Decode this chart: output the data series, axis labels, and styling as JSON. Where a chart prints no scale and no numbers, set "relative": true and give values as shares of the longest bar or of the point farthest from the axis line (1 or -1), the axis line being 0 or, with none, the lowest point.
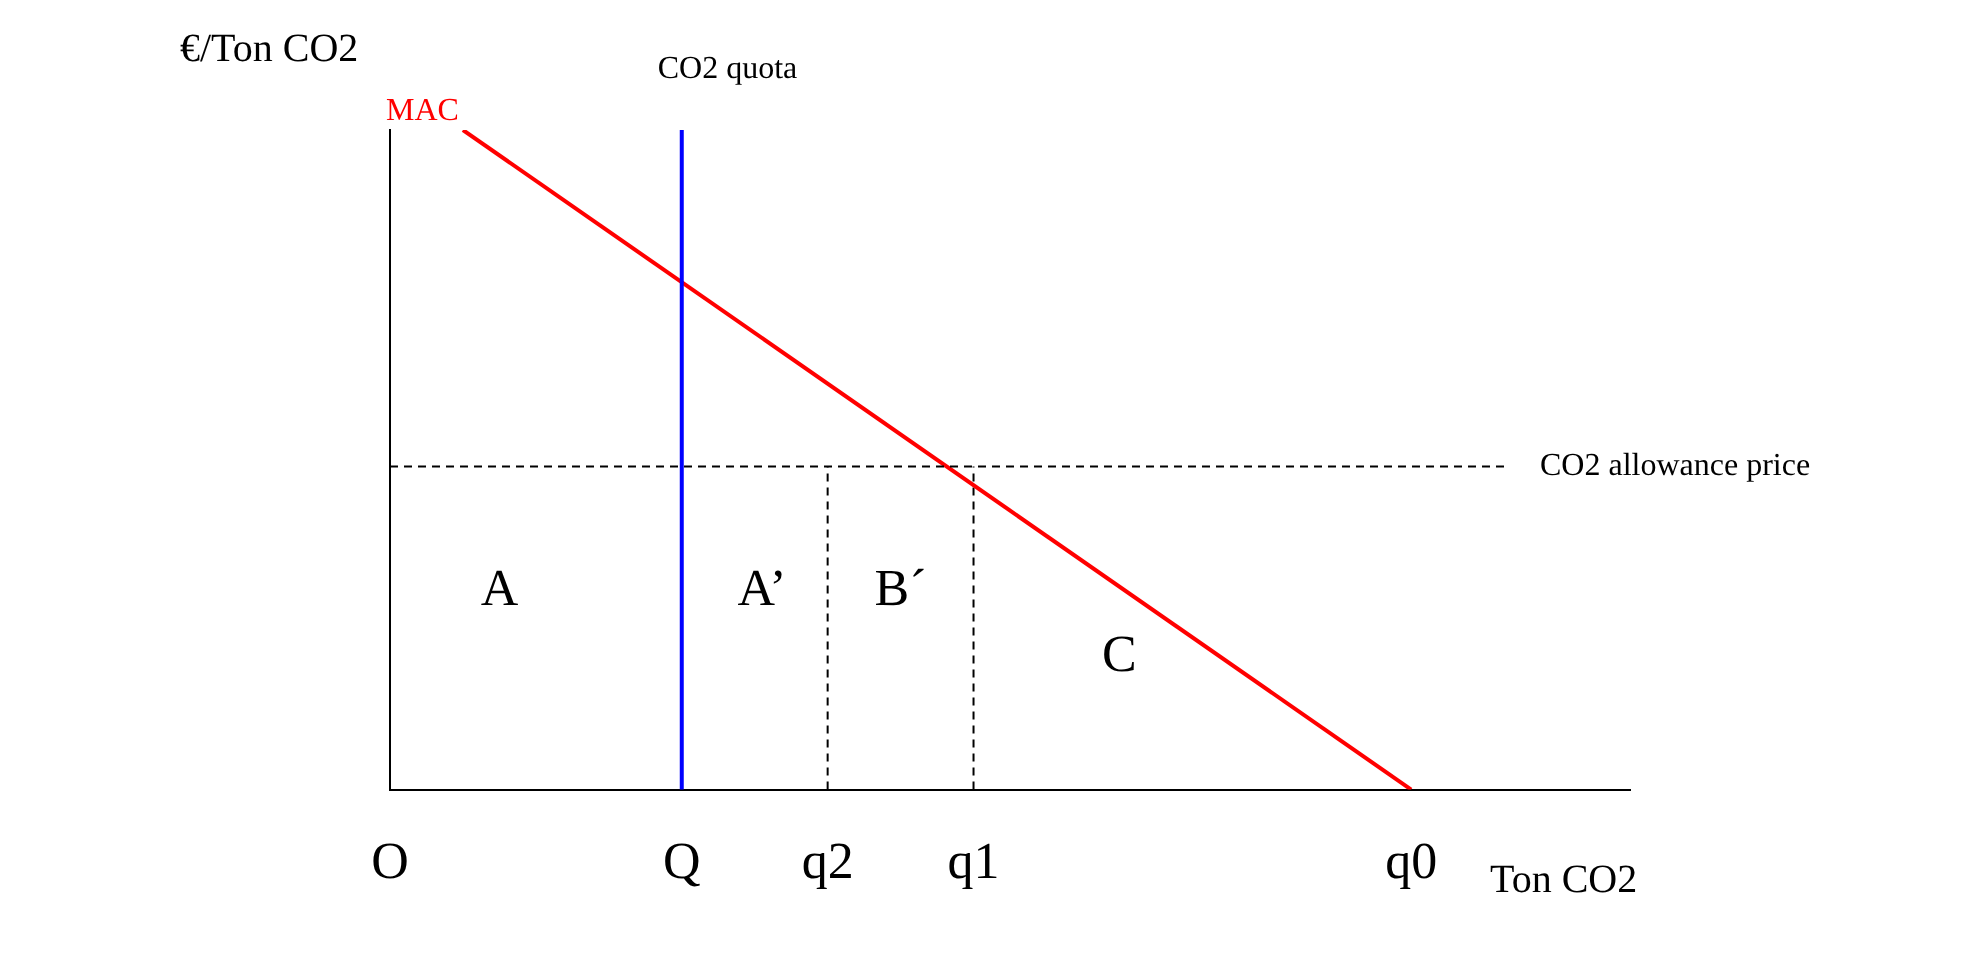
{
  "chart_data": {
    "type": "line",
    "relative": true,
    "xlabel": "Ton CO2",
    "ylabel": "€/Ton CO2",
    "categories": [
      "O",
      null,
      null,
      null,
      "Q",
      null,
      "q2",
      null,
      "q1",
      null,
      null,
      null,
      null,
      null,
      "q0",
      null,
      null,
      null
    ],
    "series": [
      {
        "name": "MAC",
        "color": "#ff0000",
        "values": [
          null,
          1,
          null,
          null,
          null,
          null,
          null,
          null,
          null,
          null,
          null,
          null,
          null,
          null,
          0,
          null,
          null,
          null
        ],
        "line_style": "solid"
      },
      {
        "color": "#000000",
        "x": [
          "q2",
          "q2"
        ],
        "values": [
          0,
          0.49
        ],
        "line_style": "dashed"
      },
      {
        "color": "#000000",
        "x": [
          "q1",
          "q1"
        ],
        "values": [
          0,
          0.49
        ],
        "line_style": "dashed"
      }
    ],
    "ref_lines": [
      {
        "axis": "x",
        "value": "Q",
        "label": "CO2 quota",
        "color": "#0000ff",
        "line_style": "solid"
      },
      {
        "axis": "y",
        "value": 0.49,
        "label": "CO2 allowance price",
        "color": "#000000",
        "line_style": "dashed"
      }
    ],
    "annotations": [
      "A",
      "A’",
      "B´",
      "C"
    ],
    "marker": "none",
    "grid": false,
    "legend": false
  }
}
